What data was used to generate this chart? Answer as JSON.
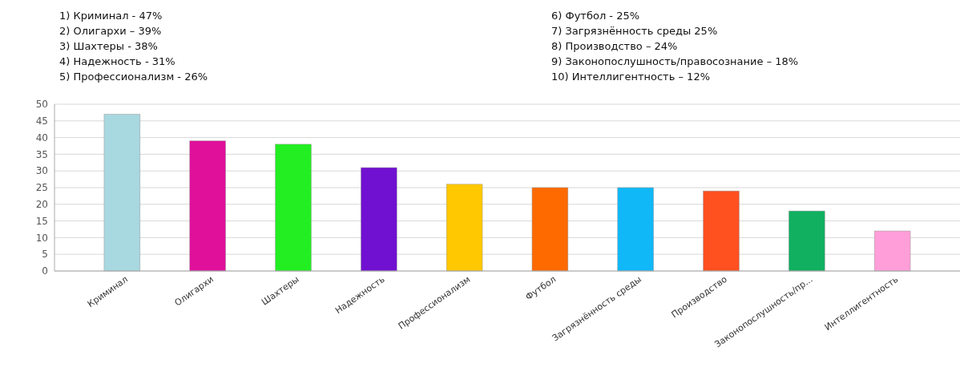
{
  "chart_data": {
    "type": "bar",
    "categories": [
      "Криминал",
      "Олигархи",
      "Шахтеры",
      "Надежность",
      "Профессионализм",
      "Футбол",
      "Загрязнённость среды",
      "Производство",
      "Законопослушность/пр...",
      "Интеллигентность"
    ],
    "values": [
      47,
      39,
      38,
      31,
      26,
      25,
      25,
      24,
      18,
      12
    ],
    "colors": [
      "#a8d8e0",
      "#e0109a",
      "#22ee22",
      "#7010d0",
      "#ffc800",
      "#ff6a00",
      "#10b8f8",
      "#ff5020",
      "#10b060",
      "#ff9ed8"
    ],
    "ylim": [
      0,
      50
    ],
    "yticks": [
      0,
      5,
      10,
      15,
      20,
      25,
      30,
      35,
      40,
      45,
      50
    ],
    "grid": "y",
    "annotations": [
      "1) Криминал  - 47%",
      "2) Олигархи – 39%",
      "3) Шахтеры - 38%",
      "4) Надежность - 31%",
      "5) Профессионализм - 26%",
      "6) Футбол - 25%",
      "7) Загрязнённость среды 25%",
      "8) Производство – 24%",
      "9) Законопослушность/правосознание – 18%",
      "10) Интеллигентность – 12%"
    ]
  }
}
